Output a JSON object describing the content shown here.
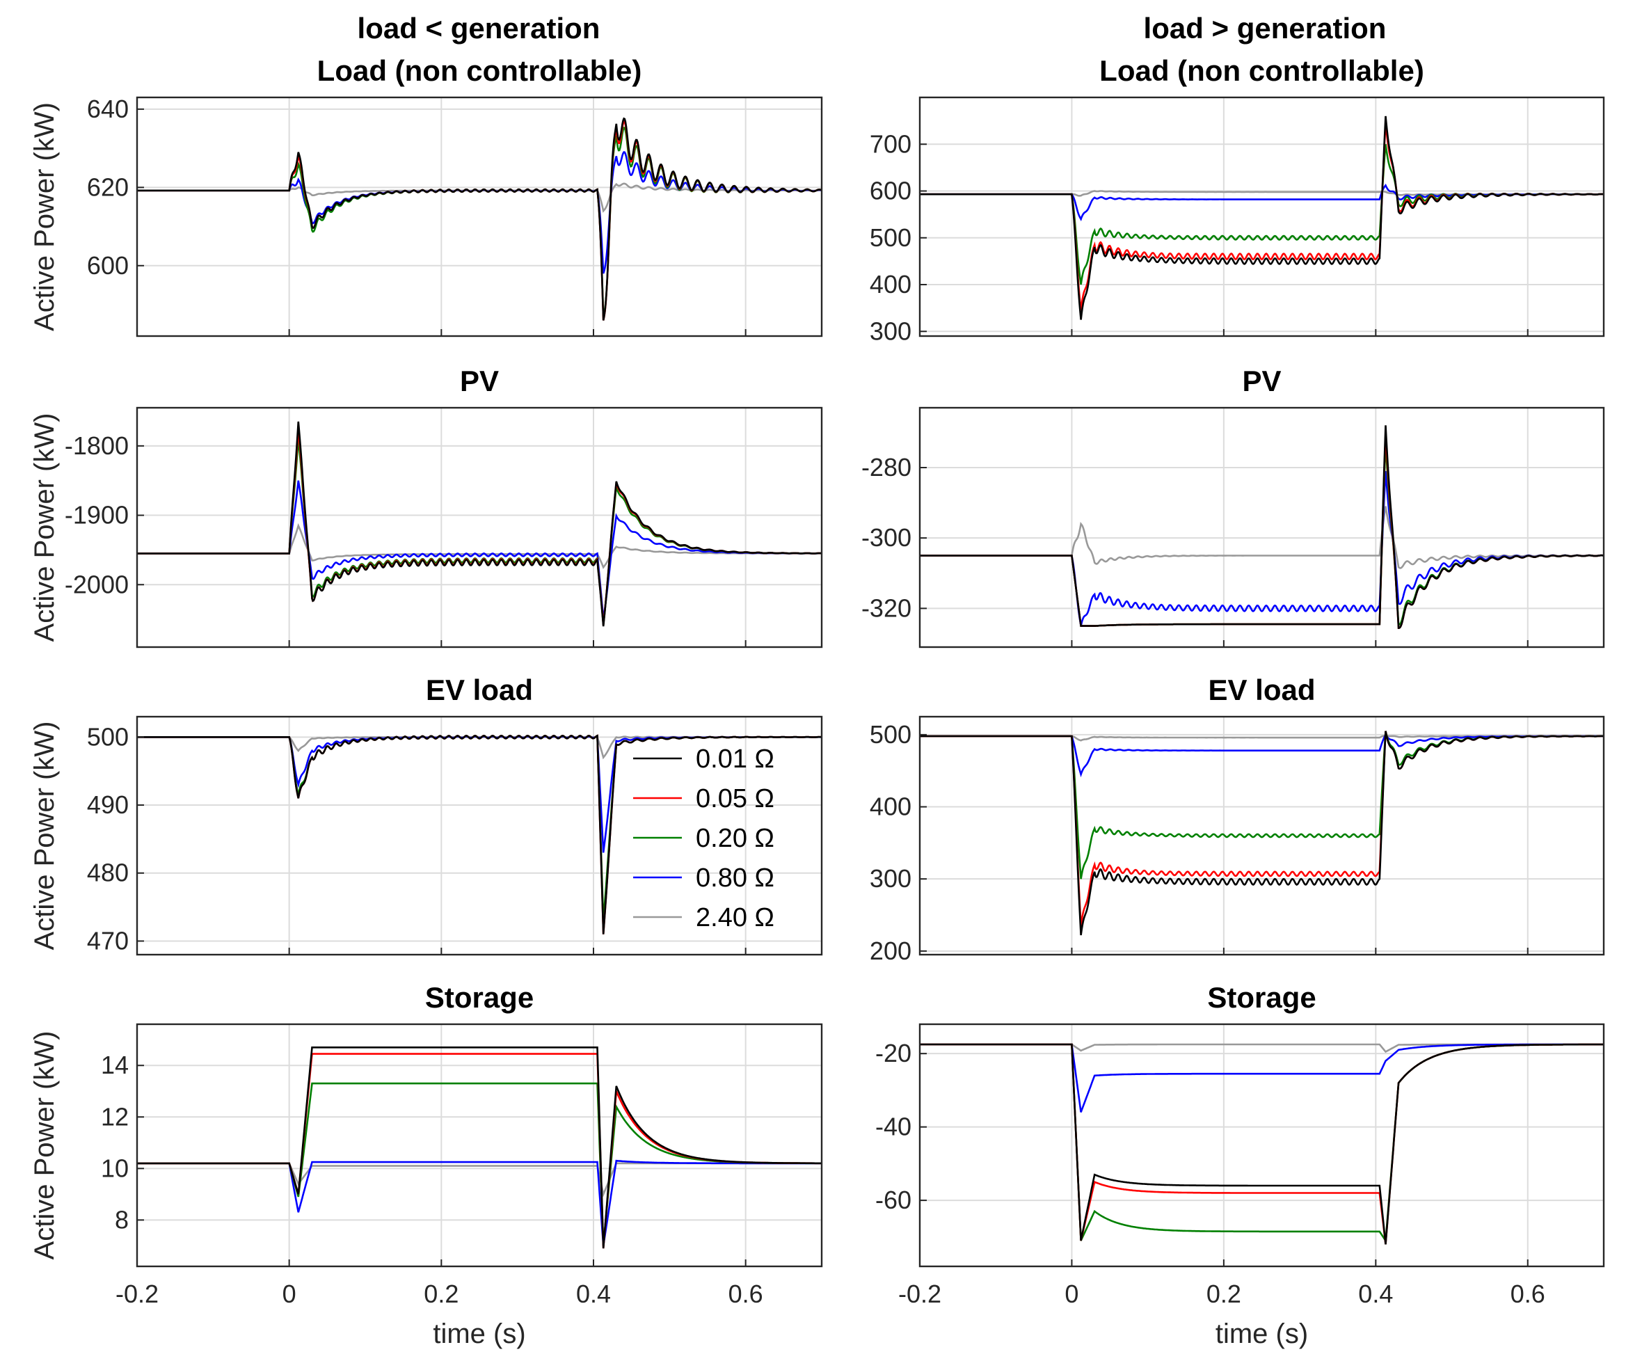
{
  "colors": {
    "0.01": "#000000",
    "0.05": "#ff0000",
    "0.20": "#008000",
    "0.80": "#0000ff",
    "2.40": "#999999",
    "grid": "#dcdcdc",
    "axis": "#262626"
  },
  "legend": {
    "entries": [
      {
        "label": "0.01 Ω",
        "color_key": "0.01"
      },
      {
        "label": "0.05 Ω",
        "color_key": "0.05"
      },
      {
        "label": "0.20 Ω",
        "color_key": "0.20"
      },
      {
        "label": "0.80 Ω",
        "color_key": "0.80"
      },
      {
        "label": "2.40 Ω",
        "color_key": "2.40"
      }
    ],
    "placement": "inside EV load (left column), right side"
  },
  "column_titles": [
    "load < generation",
    "load > generation"
  ],
  "chart_data": [
    {
      "type": "line",
      "title": "Load (non controllable)",
      "ylabel": "Active Power (kW)",
      "xlim": [
        -0.2,
        0.7
      ],
      "ylim": [
        582,
        643
      ],
      "yticks": [
        600,
        620,
        640
      ],
      "xticks": [
        -0.2,
        0,
        0.2,
        0.4,
        0.6
      ],
      "show_xticklabels": false,
      "xlabel": "",
      "baseline": 619.2,
      "t1": 0.0,
      "t2": 0.405,
      "series": [
        {
          "name": "0.01 Ω",
          "key": "0.01",
          "steady": 619.2,
          "end": 619.2,
          "p1": 629,
          "d1": 610,
          "p2": 586,
          "d2": 638,
          "osc1": 1.2,
          "osc2": 6.0,
          "ripple": 0.3
        },
        {
          "name": "0.05 Ω",
          "key": "0.05",
          "steady": 619.2,
          "end": 619.2,
          "p1": 628,
          "d1": 610,
          "p2": 586,
          "d2": 637,
          "osc1": 1.2,
          "osc2": 6.0,
          "ripple": 0.3
        },
        {
          "name": "0.20 Ω",
          "key": "0.20",
          "steady": 619.2,
          "end": 619.2,
          "p1": 626,
          "d1": 609,
          "p2": 587,
          "d2": 635,
          "osc1": 1.2,
          "osc2": 6.0,
          "ripple": 0.3
        },
        {
          "name": "0.80 Ω",
          "key": "0.80",
          "steady": 619.2,
          "end": 619.2,
          "p1": 622,
          "d1": 611,
          "p2": 598,
          "d2": 629,
          "osc1": 0.8,
          "osc2": 3.5,
          "ripple": 0.2
        },
        {
          "name": "2.40 Ω",
          "key": "2.40",
          "steady": 619.2,
          "end": 619.2,
          "p1": 620,
          "d1": 618,
          "p2": 614,
          "d2": 621,
          "osc1": 0.2,
          "osc2": 0.6,
          "ripple": 0.0
        }
      ]
    },
    {
      "type": "line",
      "title": "Load (non controllable)",
      "ylabel": "",
      "xlim": [
        -0.2,
        0.7
      ],
      "ylim": [
        290,
        800
      ],
      "yticks": [
        300,
        400,
        500,
        600,
        700
      ],
      "xticks": [
        -0.2,
        0,
        0.2,
        0.4,
        0.6
      ],
      "show_xticklabels": false,
      "xlabel": "",
      "baseline": 593,
      "t1": 0.0,
      "t2": 0.405,
      "series": [
        {
          "name": "0.01 Ω",
          "key": "0.01",
          "steady": 450,
          "end": 593,
          "p1": 325,
          "d1": 480,
          "p2": 760,
          "d2": 560,
          "osc1": 12,
          "osc2": 14,
          "ripple": 6
        },
        {
          "name": "0.05 Ω",
          "key": "0.05",
          "steady": 460,
          "end": 593,
          "p1": 345,
          "d1": 485,
          "p2": 745,
          "d2": 565,
          "osc1": 12,
          "osc2": 14,
          "ripple": 6
        },
        {
          "name": "0.20 Ω",
          "key": "0.20",
          "steady": 500,
          "end": 593,
          "p1": 400,
          "d1": 515,
          "p2": 700,
          "d2": 575,
          "osc1": 10,
          "osc2": 12,
          "ripple": 4
        },
        {
          "name": "0.80 Ω",
          "key": "0.80",
          "steady": 582,
          "end": 593,
          "p1": 540,
          "d1": 586,
          "p2": 612,
          "d2": 585,
          "osc1": 4,
          "osc2": 5,
          "ripple": 0
        },
        {
          "name": "2.40 Ω",
          "key": "2.40",
          "steady": 598,
          "end": 593,
          "p1": 590,
          "d1": 600,
          "p2": 598,
          "d2": 592,
          "osc1": 1,
          "osc2": 1,
          "ripple": 0
        }
      ]
    },
    {
      "type": "line",
      "title": "PV",
      "ylabel": "Active Power (kW)",
      "xlim": [
        -0.2,
        0.7
      ],
      "ylim": [
        -2090,
        -1745
      ],
      "yticks": [
        -1800,
        -1900,
        -2000
      ],
      "xticks": [
        -0.2,
        0,
        0.2,
        0.4,
        0.6
      ],
      "show_xticklabels": false,
      "xlabel": "",
      "baseline": -1955,
      "t1": 0.0,
      "t2": 0.405,
      "series": [
        {
          "name": "0.01 Ω",
          "key": "0.01",
          "steady": -1968,
          "end": -1955,
          "p1": -1765,
          "d1": -2020,
          "p2": -2060,
          "d2": -1850,
          "osc1": 4,
          "osc2": 4,
          "ripple": 4
        },
        {
          "name": "0.05 Ω",
          "key": "0.05",
          "steady": -1967,
          "end": -1955,
          "p1": -1775,
          "d1": -2020,
          "p2": -2058,
          "d2": -1852,
          "osc1": 4,
          "osc2": 4,
          "ripple": 4
        },
        {
          "name": "0.20 Ω",
          "key": "0.20",
          "steady": -1965,
          "end": -1955,
          "p1": -1790,
          "d1": -2015,
          "p2": -2058,
          "d2": -1858,
          "osc1": 4,
          "osc2": 4,
          "ripple": 3
        },
        {
          "name": "0.80 Ω",
          "key": "0.80",
          "steady": -1957,
          "end": -1955,
          "p1": -1850,
          "d1": -1990,
          "p2": -2050,
          "d2": -1900,
          "osc1": 3,
          "osc2": 3,
          "ripple": 2
        },
        {
          "name": "2.40 Ω",
          "key": "2.40",
          "steady": -1956,
          "end": -1955,
          "p1": -1915,
          "d1": -1965,
          "p2": -1975,
          "d2": -1945,
          "osc1": 1,
          "osc2": 1,
          "ripple": 0
        }
      ]
    },
    {
      "type": "line",
      "title": "PV",
      "ylabel": "",
      "xlim": [
        -0.2,
        0.7
      ],
      "ylim": [
        -331,
        -263
      ],
      "yticks": [
        -280,
        -300,
        -320
      ],
      "xticks": [
        -0.2,
        0,
        0.2,
        0.4,
        0.6
      ],
      "show_xticklabels": false,
      "xlabel": "",
      "baseline": -305,
      "t1": 0.0,
      "t2": 0.405,
      "series": [
        {
          "name": "0.01 Ω",
          "key": "0.01",
          "steady": -324.5,
          "end": -305,
          "p1": -325,
          "d1": -325,
          "p2": -268,
          "d2": -325,
          "osc1": 0,
          "osc2": 2,
          "ripple": 0
        },
        {
          "name": "0.05 Ω",
          "key": "0.05",
          "steady": -324.5,
          "end": -305,
          "p1": -325,
          "d1": -325,
          "p2": -270,
          "d2": -325,
          "osc1": 0,
          "osc2": 2,
          "ripple": 0
        },
        {
          "name": "0.20 Ω",
          "key": "0.20",
          "steady": -324.5,
          "end": -305,
          "p1": -325,
          "d1": -325,
          "p2": -273,
          "d2": -324,
          "osc1": 0,
          "osc2": 2,
          "ripple": 0
        },
        {
          "name": "0.80 Ω",
          "key": "0.80",
          "steady": -320,
          "end": -305,
          "p1": -325,
          "d1": -316,
          "p2": -281,
          "d2": -318,
          "osc1": 1,
          "osc2": 2,
          "ripple": 0.8
        },
        {
          "name": "2.40 Ω",
          "key": "2.40",
          "steady": -305,
          "end": -305,
          "p1": -296,
          "d1": -307,
          "p2": -291,
          "d2": -308,
          "osc1": 1,
          "osc2": 1,
          "ripple": 0
        }
      ]
    },
    {
      "type": "line",
      "title": "EV load",
      "ylabel": "Active Power (kW)",
      "xlim": [
        -0.2,
        0.7
      ],
      "ylim": [
        468,
        503
      ],
      "yticks": [
        470,
        480,
        490,
        500
      ],
      "xticks": [
        -0.2,
        0,
        0.2,
        0.4,
        0.6
      ],
      "show_xticklabels": false,
      "xlabel": "",
      "baseline": 500,
      "t1": 0.0,
      "t2": 0.405,
      "series": [
        {
          "name": "0.01 Ω",
          "key": "0.01",
          "steady": 500,
          "end": 500,
          "p1": 491,
          "d1": 497,
          "p2": 471,
          "d2": 499,
          "osc1": 0.6,
          "osc2": 0.3,
          "ripple": 0.2
        },
        {
          "name": "0.05 Ω",
          "key": "0.05",
          "steady": 500,
          "end": 500,
          "p1": 491,
          "d1": 497,
          "p2": 471,
          "d2": 499,
          "osc1": 0.6,
          "osc2": 0.3,
          "ripple": 0.2
        },
        {
          "name": "0.20 Ω",
          "key": "0.20",
          "steady": 500,
          "end": 500,
          "p1": 491.5,
          "d1": 497,
          "p2": 473,
          "d2": 499,
          "osc1": 0.6,
          "osc2": 0.3,
          "ripple": 0.2
        },
        {
          "name": "0.80 Ω",
          "key": "0.80",
          "steady": 500,
          "end": 500,
          "p1": 493,
          "d1": 498,
          "p2": 483,
          "d2": 499.5,
          "osc1": 0.4,
          "osc2": 0.2,
          "ripple": 0.1
        },
        {
          "name": "2.40 Ω",
          "key": "2.40",
          "steady": 500,
          "end": 500,
          "p1": 498,
          "d1": 499.8,
          "p2": 497,
          "d2": 500,
          "osc1": 0.1,
          "osc2": 0.1,
          "ripple": 0
        }
      ]
    },
    {
      "type": "line",
      "title": "EV load",
      "ylabel": "",
      "xlim": [
        -0.2,
        0.7
      ],
      "ylim": [
        195,
        525
      ],
      "yticks": [
        200,
        300,
        400,
        500
      ],
      "xticks": [
        -0.2,
        0,
        0.2,
        0.4,
        0.6
      ],
      "show_xticklabels": false,
      "xlabel": "",
      "baseline": 498,
      "t1": 0.0,
      "t2": 0.405,
      "series": [
        {
          "name": "0.01 Ω",
          "key": "0.01",
          "steady": 296,
          "end": 498,
          "p1": 222,
          "d1": 310,
          "p2": 505,
          "d2": 455,
          "osc1": 6,
          "osc2": 6,
          "ripple": 4
        },
        {
          "name": "0.05 Ω",
          "key": "0.05",
          "steady": 307,
          "end": 498,
          "p1": 235,
          "d1": 320,
          "p2": 505,
          "d2": 455,
          "osc1": 6,
          "osc2": 6,
          "ripple": 3
        },
        {
          "name": "0.20 Ω",
          "key": "0.20",
          "steady": 360,
          "end": 498,
          "p1": 300,
          "d1": 370,
          "p2": 505,
          "d2": 460,
          "osc1": 5,
          "osc2": 5,
          "ripple": 2
        },
        {
          "name": "0.80 Ω",
          "key": "0.80",
          "steady": 478,
          "end": 498,
          "p1": 445,
          "d1": 480,
          "p2": 500,
          "d2": 485,
          "osc1": 2,
          "osc2": 2,
          "ripple": 0
        },
        {
          "name": "2.40 Ω",
          "key": "2.40",
          "steady": 496,
          "end": 498,
          "p1": 492,
          "d1": 497,
          "p2": 499,
          "d2": 497,
          "osc1": 0.5,
          "osc2": 0.5,
          "ripple": 0
        }
      ]
    },
    {
      "type": "line",
      "title": "Storage",
      "ylabel": "Active Power (kW)",
      "xlim": [
        -0.2,
        0.7
      ],
      "ylim": [
        6.2,
        15.6
      ],
      "yticks": [
        8,
        10,
        12,
        14
      ],
      "xticks": [
        -0.2,
        0,
        0.2,
        0.4,
        0.6
      ],
      "xticklabels": [
        "-0.2",
        "0",
        "0.2",
        "0.4",
        "0.6"
      ],
      "show_xticklabels": true,
      "xlabel": "time (s)",
      "baseline": 10.2,
      "t1": 0.0,
      "t2": 0.405,
      "series": [
        {
          "name": "0.01 Ω",
          "key": "0.01",
          "steady": 14.7,
          "end": 10.2,
          "p1": 9.0,
          "d1": 14.7,
          "p2": 6.9,
          "d2": 13.2,
          "osc1": 0,
          "osc2": 0,
          "ripple": 0
        },
        {
          "name": "0.05 Ω",
          "key": "0.05",
          "steady": 14.45,
          "end": 10.2,
          "p1": 9.0,
          "d1": 14.45,
          "p2": 6.9,
          "d2": 13.0,
          "osc1": 0,
          "osc2": 0,
          "ripple": 0
        },
        {
          "name": "0.20 Ω",
          "key": "0.20",
          "steady": 13.3,
          "end": 10.2,
          "p1": 8.9,
          "d1": 13.3,
          "p2": 7.0,
          "d2": 12.4,
          "osc1": 0,
          "osc2": 0,
          "ripple": 0
        },
        {
          "name": "0.80 Ω",
          "key": "0.80",
          "steady": 10.25,
          "end": 10.2,
          "p1": 8.3,
          "d1": 10.25,
          "p2": 7.0,
          "d2": 10.3,
          "osc1": 0,
          "osc2": 0,
          "ripple": 0
        },
        {
          "name": "2.40 Ω",
          "key": "2.40",
          "steady": 10.1,
          "end": 10.2,
          "p1": 9.4,
          "d1": 10.1,
          "p2": 9.0,
          "d2": 10.2,
          "osc1": 0,
          "osc2": 0,
          "ripple": 0
        }
      ]
    },
    {
      "type": "line",
      "title": "Storage",
      "ylabel": "",
      "xlim": [
        -0.2,
        0.7
      ],
      "ylim": [
        -78,
        -12
      ],
      "yticks": [
        -20,
        -40,
        -60
      ],
      "xticks": [
        -0.2,
        0,
        0.2,
        0.4,
        0.6
      ],
      "xticklabels": [
        "-0.2",
        "0",
        "0.2",
        "0.4",
        "0.6"
      ],
      "show_xticklabels": true,
      "xlabel": "time (s)",
      "baseline": -17.5,
      "t1": 0.0,
      "t2": 0.405,
      "series": [
        {
          "name": "0.01 Ω",
          "key": "0.01",
          "steady": -56,
          "end": -17.5,
          "p1": -71,
          "d1": -53,
          "p2": -72,
          "d2": -28,
          "osc1": 0,
          "osc2": 0,
          "ripple": 0
        },
        {
          "name": "0.05 Ω",
          "key": "0.05",
          "steady": -58,
          "end": -17.5,
          "p1": -71,
          "d1": -55,
          "p2": -72,
          "d2": -28,
          "osc1": 0,
          "osc2": 0,
          "ripple": 0
        },
        {
          "name": "0.20 Ω",
          "key": "0.20",
          "steady": -68.5,
          "end": -17.5,
          "p1": -71,
          "d1": -63,
          "p2": -71,
          "d2": -28,
          "osc1": 0,
          "osc2": 0,
          "ripple": 0
        },
        {
          "name": "0.80 Ω",
          "key": "0.80",
          "steady": -25.5,
          "end": -17.5,
          "p1": -36,
          "d1": -26,
          "p2": -22,
          "d2": -19,
          "osc1": 0,
          "osc2": 0,
          "ripple": 0
        },
        {
          "name": "2.40 Ω",
          "key": "2.40",
          "steady": -17.5,
          "end": -17.5,
          "p1": -19.2,
          "d1": -17.6,
          "p2": -19.5,
          "d2": -17.6,
          "osc1": 0,
          "osc2": 0,
          "ripple": 0
        }
      ]
    }
  ]
}
